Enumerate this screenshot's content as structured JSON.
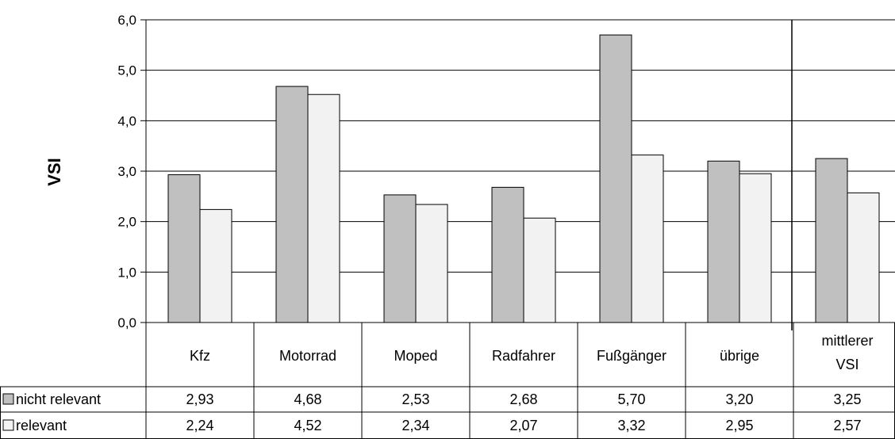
{
  "chart_data": {
    "type": "bar",
    "title": "",
    "xlabel": "",
    "ylabel": "VSI",
    "ylim": [
      0,
      6
    ],
    "yticks": [
      "0,0",
      "1,0",
      "2,0",
      "3,0",
      "4,0",
      "5,0",
      "6,0"
    ],
    "grid": true,
    "legend": "in data table rows below the chart",
    "categories": [
      [
        "Kfz"
      ],
      [
        "Motorrad"
      ],
      [
        "Moped"
      ],
      [
        "Radfahrer"
      ],
      [
        "Fußgänger"
      ],
      [
        "übrige"
      ],
      [
        "mittlerer",
        "VSI"
      ]
    ],
    "series": [
      {
        "name": "nicht relevant",
        "color": "#c0c0c0",
        "values": [
          2.93,
          4.68,
          2.53,
          2.68,
          5.7,
          3.2,
          3.25
        ],
        "labels": [
          "2,93",
          "4,68",
          "2,53",
          "2,68",
          "5,70",
          "3,20",
          "3,25"
        ]
      },
      {
        "name": "relevant",
        "color": "#f2f2f2",
        "values": [
          2.24,
          4.52,
          2.34,
          2.07,
          3.32,
          2.95,
          2.57
        ],
        "labels": [
          "2,24",
          "4,52",
          "2,34",
          "2,07",
          "3,32",
          "2,95",
          "2,57"
        ]
      }
    ]
  }
}
